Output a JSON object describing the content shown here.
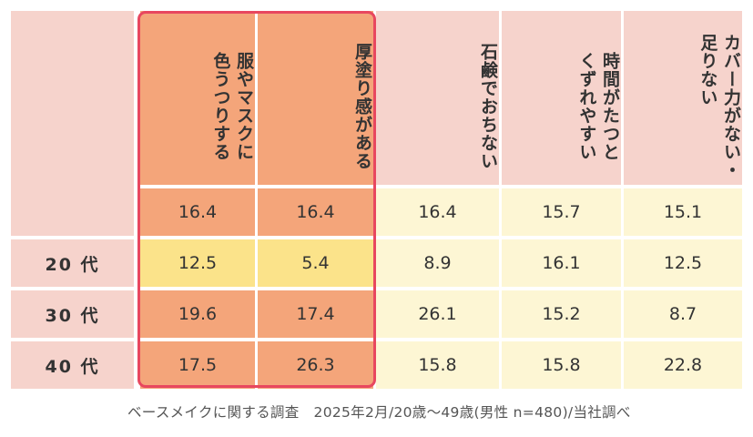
{
  "chart_data": {
    "type": "table",
    "columns": [
      {
        "header": "服やマスクに色うつりする",
        "lines": [
          "服やマスクに",
          "色うつりする"
        ],
        "highlight": true
      },
      {
        "header": "厚塗り感がある",
        "lines": [
          "厚塗り感がある"
        ],
        "highlight": true
      },
      {
        "header": "石鹸でおちない",
        "lines": [
          "石鹸でおちない"
        ],
        "highlight": false
      },
      {
        "header": "時間がたつとくずれやすい",
        "lines": [
          "時間がたつと",
          "くずれやすい"
        ],
        "highlight": false
      },
      {
        "header": "カバー力がない・足りない",
        "lines": [
          "カバー力がない・",
          "足りない"
        ],
        "highlight": false
      }
    ],
    "rows": [
      {
        "label": "",
        "values": [
          "16.4",
          "16.4",
          "16.4",
          "15.7",
          "15.1"
        ]
      },
      {
        "label": "20 代",
        "values": [
          "12.5",
          "5.4",
          "8.9",
          "16.1",
          "12.5"
        ]
      },
      {
        "label": "30 代",
        "values": [
          "19.6",
          "17.4",
          "26.1",
          "15.2",
          "8.7"
        ]
      },
      {
        "label": "40 代",
        "values": [
          "17.5",
          "26.3",
          "15.8",
          "15.8",
          "22.8"
        ]
      }
    ],
    "cell_highlights": [
      [
        1,
        0
      ],
      [
        1,
        1
      ]
    ]
  },
  "caption": {
    "survey": "ベースメイクに関する調査",
    "detail": "2025年2月/20歳～49歳(男性 n=480)/当社調べ"
  },
  "colors": {
    "header_pink": "#f6d3cc",
    "label_pink": "#f6d3cc",
    "highlight_orange": "#f4a57a",
    "cell_cream": "#fdf6d4",
    "cell_yellow": "#fbe38a",
    "frame_red": "#e8475f"
  }
}
